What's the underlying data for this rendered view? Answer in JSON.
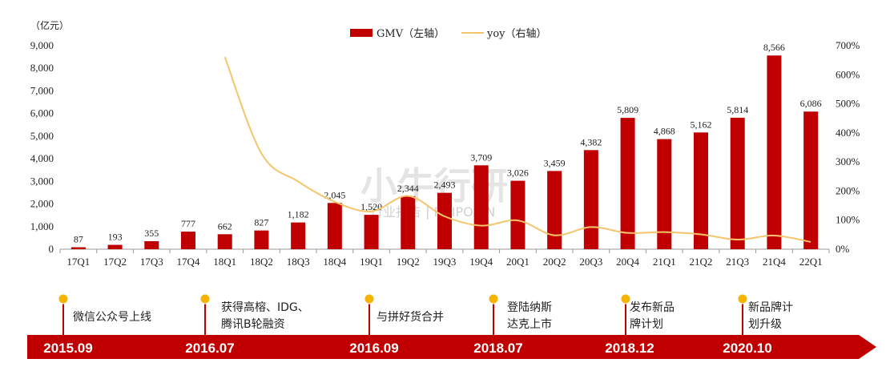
{
  "chart_data": {
    "type": "bar",
    "unit_label": "（亿元）",
    "categories": [
      "17Q1",
      "17Q2",
      "17Q3",
      "17Q4",
      "18Q1",
      "18Q2",
      "18Q3",
      "18Q4",
      "19Q1",
      "19Q2",
      "19Q3",
      "19Q4",
      "20Q1",
      "20Q2",
      "20Q3",
      "20Q4",
      "21Q1",
      "21Q2",
      "21Q3",
      "21Q4",
      "22Q1"
    ],
    "series": [
      {
        "name": "GMV（左轴）",
        "type": "bar",
        "axis": "left",
        "color": "#c00000",
        "values": [
          87,
          193,
          355,
          777,
          662,
          827,
          1182,
          2045,
          1520,
          2344,
          2493,
          3709,
          3026,
          3459,
          4382,
          5809,
          4868,
          5162,
          5814,
          8566,
          6086
        ],
        "labels": [
          "87",
          "193",
          "355",
          "777",
          "662",
          "827",
          "1,182",
          "2,045",
          "1,520",
          "2,344",
          "2,493",
          "3,709",
          "3,026",
          "3,459",
          "4,382",
          "5,809",
          "4,868",
          "5,162",
          "5,814",
          "8,566",
          "6,086"
        ]
      },
      {
        "name": "yoy（右轴）",
        "type": "line",
        "axis": "right",
        "color": "#f5c56b",
        "values": [
          null,
          null,
          null,
          null,
          661,
          329,
          233,
          163,
          130,
          183,
          113,
          81,
          99,
          48,
          76,
          56,
          59,
          51,
          33,
          47,
          25
        ]
      }
    ],
    "left_axis": {
      "ylim": [
        0,
        9000
      ],
      "ticks": [
        "0",
        "1,000",
        "2,000",
        "3,000",
        "4,000",
        "5,000",
        "6,000",
        "7,000",
        "8,000",
        "9,000"
      ]
    },
    "right_axis": {
      "ylim": [
        0,
        700
      ],
      "ticks": [
        "0%",
        "100%",
        "200%",
        "300%",
        "400%",
        "500%",
        "600%",
        "700%"
      ]
    },
    "legend_position": "top-center",
    "grid": false
  },
  "watermark": {
    "main": "小牛行研",
    "sub": "行业报告 | POIPO.CN"
  },
  "timeline": {
    "color": "#c00000",
    "marker_color": "#f5b400",
    "events": [
      {
        "date": "2015.09",
        "lines": [
          "微信公众号上线"
        ]
      },
      {
        "date": "2016.07",
        "lines": [
          "获得高榕、IDG、",
          "腾讯B轮融资"
        ]
      },
      {
        "date": "2016.09",
        "lines": [
          "与拼好货合并"
        ]
      },
      {
        "date": "2018.07",
        "lines": [
          "登陆纳斯",
          "达克上市"
        ]
      },
      {
        "date": "2018.12",
        "lines": [
          "发布新品",
          "牌计划"
        ]
      },
      {
        "date": "2020.10",
        "lines": [
          "新品牌计",
          "划升级"
        ]
      }
    ]
  }
}
